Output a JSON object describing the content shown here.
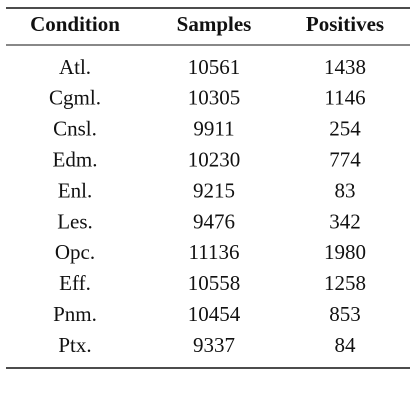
{
  "table": {
    "header": [
      "Condition",
      "Samples",
      "Positives"
    ],
    "rows": [
      [
        "Atl.",
        10561,
        1438
      ],
      [
        "Cgml.",
        10305,
        1146
      ],
      [
        "Cnsl.",
        9911,
        254
      ],
      [
        "Edm.",
        10230,
        774
      ],
      [
        "Enl.",
        9215,
        83
      ],
      [
        "Les.",
        9476,
        342
      ],
      [
        "Opc.",
        11136,
        1980
      ],
      [
        "Eff.",
        10558,
        1258
      ],
      [
        "Pnm.",
        10454,
        853
      ],
      [
        "Ptx.",
        9337,
        84
      ]
    ]
  }
}
